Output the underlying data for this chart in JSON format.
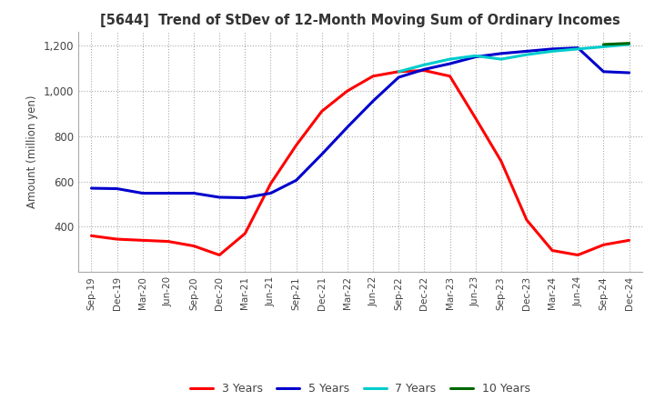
{
  "title": "[5644]  Trend of StDev of 12-Month Moving Sum of Ordinary Incomes",
  "ylabel": "Amount (million yen)",
  "ylim": [
    200,
    1260
  ],
  "yticks": [
    400,
    600,
    800,
    1000,
    1200
  ],
  "line_colors": {
    "3y": "#ff0000",
    "5y": "#0000cc",
    "7y": "#00cccc",
    "10y": "#006600"
  },
  "legend_labels": [
    "3 Years",
    "5 Years",
    "7 Years",
    "10 Years"
  ],
  "x_labels": [
    "Sep-19",
    "Dec-19",
    "Mar-20",
    "Jun-20",
    "Sep-20",
    "Dec-20",
    "Mar-21",
    "Jun-21",
    "Sep-21",
    "Dec-21",
    "Mar-22",
    "Jun-22",
    "Sep-22",
    "Dec-22",
    "Mar-23",
    "Jun-23",
    "Sep-23",
    "Dec-23",
    "Mar-24",
    "Jun-24",
    "Sep-24",
    "Dec-24"
  ],
  "series_3y": [
    360,
    345,
    340,
    335,
    315,
    275,
    370,
    590,
    760,
    910,
    1000,
    1065,
    1085,
    1090,
    1065,
    880,
    690,
    430,
    295,
    275,
    320,
    340
  ],
  "series_5y": [
    570,
    568,
    548,
    548,
    548,
    530,
    528,
    548,
    605,
    720,
    840,
    955,
    1060,
    1095,
    1120,
    1150,
    1165,
    1175,
    1185,
    1190,
    1085,
    1080
  ],
  "series_7y": [
    null,
    null,
    null,
    null,
    null,
    null,
    null,
    null,
    null,
    null,
    null,
    null,
    1085,
    1115,
    1140,
    1155,
    1140,
    1160,
    1175,
    1185,
    1195,
    1205
  ],
  "series_10y": [
    null,
    null,
    null,
    null,
    null,
    null,
    null,
    null,
    null,
    null,
    null,
    null,
    null,
    null,
    null,
    null,
    null,
    null,
    null,
    null,
    1205,
    1210
  ],
  "background_color": "#ffffff",
  "grid_color": "#aaaaaa"
}
